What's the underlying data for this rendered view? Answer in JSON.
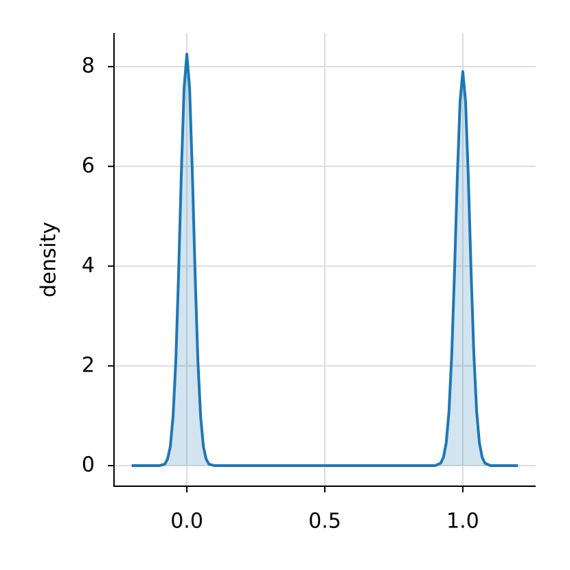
{
  "chart_data": {
    "type": "area",
    "y_label": "density",
    "x": [
      -0.2,
      -0.1,
      -0.08,
      -0.07,
      -0.06,
      -0.05,
      -0.04,
      -0.03,
      -0.02,
      -0.01,
      0,
      0.01,
      0.02,
      0.03,
      0.04,
      0.05,
      0.06,
      0.07,
      0.08,
      0.1,
      0.5,
      0.9,
      0.92,
      0.93,
      0.94,
      0.95,
      0.96,
      0.97,
      0.98,
      0.99,
      1,
      1.01,
      1.02,
      1.03,
      1.04,
      1.05,
      1.06,
      1.07,
      1.08,
      1.1,
      1.2
    ],
    "values": [
      0,
      0,
      0.03,
      0.13,
      0.38,
      0.98,
      2.1,
      3.83,
      5.86,
      7.57,
      8.25,
      7.57,
      5.86,
      3.83,
      2.1,
      0.98,
      0.38,
      0.13,
      0.03,
      0,
      0,
      0,
      0.05,
      0.17,
      0.46,
      1.1,
      2.24,
      3.89,
      5.77,
      7.3,
      7.9,
      7.3,
      5.77,
      3.89,
      2.24,
      1.1,
      0.46,
      0.17,
      0.05,
      0,
      0
    ],
    "color": "#1f77b4",
    "xlim": [
      -0.264,
      1.264
    ],
    "ylim": [
      -0.413,
      8.675
    ],
    "xticks": [
      {
        "value": 0,
        "label": "0.0"
      },
      {
        "value": 0.5,
        "label": "0.5"
      },
      {
        "value": 1,
        "label": "1.0"
      }
    ],
    "yticks": [
      0,
      2,
      4,
      6,
      8
    ],
    "grid": true
  }
}
